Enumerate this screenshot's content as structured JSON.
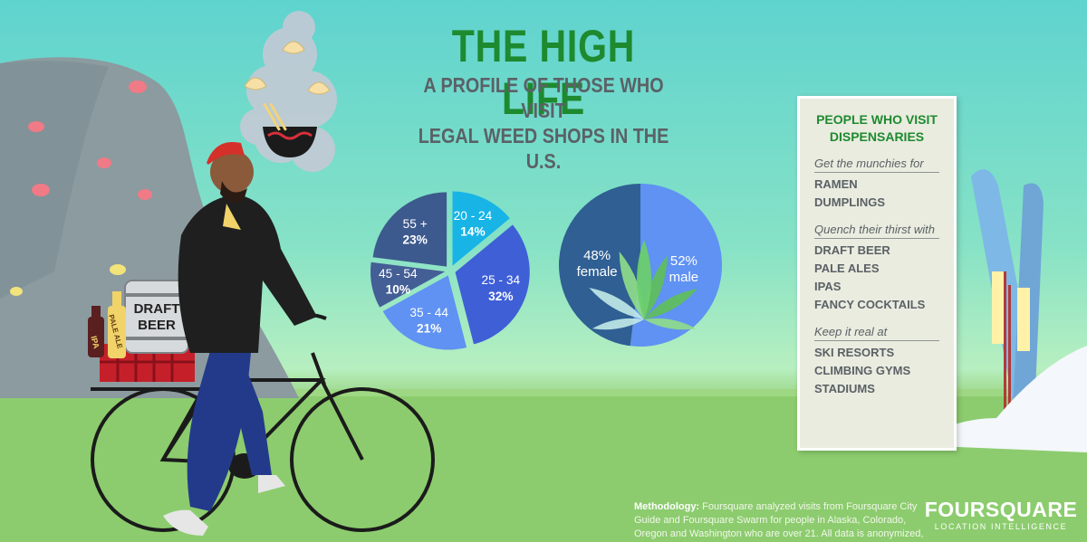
{
  "title": "THE HIGH LIFE",
  "subtitle_line1": "A PROFILE OF THOSE WHO VISIT",
  "subtitle_line2": "LEGAL WEED SHOPS IN THE U.S.",
  "panel": {
    "heading_line1": "PEOPLE WHO VISIT",
    "heading_line2": "DISPENSARIES",
    "groups": [
      {
        "label": "Get the munchies for",
        "items": [
          "RAMEN",
          "DUMPLINGS"
        ]
      },
      {
        "label": "Quench their thirst with",
        "items": [
          "DRAFT BEER",
          "PALE ALES",
          "IPAS",
          "FANCY COCKTAILS"
        ]
      },
      {
        "label": "Keep it real at",
        "items": [
          "SKI RESORTS",
          "CLIMBING GYMS",
          "STADIUMS"
        ]
      }
    ]
  },
  "illustration": {
    "keg_line1": "DRAFT",
    "keg_line2": "BEER",
    "bottle1": "IPA",
    "bottle2": "PALE ALE"
  },
  "methodology": {
    "label": "Methodology:",
    "text": " Foursquare analyzed visits from Foursquare City Guide and Foursquare Swarm for people in Alaska, Colorado, Oregon and Washington who are over 21. All data is anonymized, aggregated and normalized against the U.S. Census."
  },
  "logo": {
    "name": "FOURSQUARE",
    "tagline": "LOCATION INTELLIGENCE"
  },
  "colors": {
    "title_green": "#1e8a2f",
    "subtitle_gray": "#5b6166"
  },
  "chart_data": [
    {
      "type": "pie",
      "title": "",
      "categories": [
        "20 - 24",
        "25 - 34",
        "35 - 44",
        "45 - 54",
        "55 +"
      ],
      "values": [
        14,
        32,
        21,
        10,
        23
      ],
      "value_labels": [
        "14%",
        "32%",
        "21%",
        "10%",
        "23%"
      ],
      "colors": [
        "#18b4e6",
        "#3f5fd7",
        "#5f92f2",
        "#445e96",
        "#3c5a8d"
      ],
      "exploded": true
    },
    {
      "type": "pie",
      "title": "",
      "categories": [
        "male",
        "female"
      ],
      "values": [
        52,
        48
      ],
      "value_labels": [
        "52%",
        "48%"
      ],
      "colors": [
        "#5f92f2",
        "#2f5f93"
      ],
      "exploded": false
    }
  ]
}
